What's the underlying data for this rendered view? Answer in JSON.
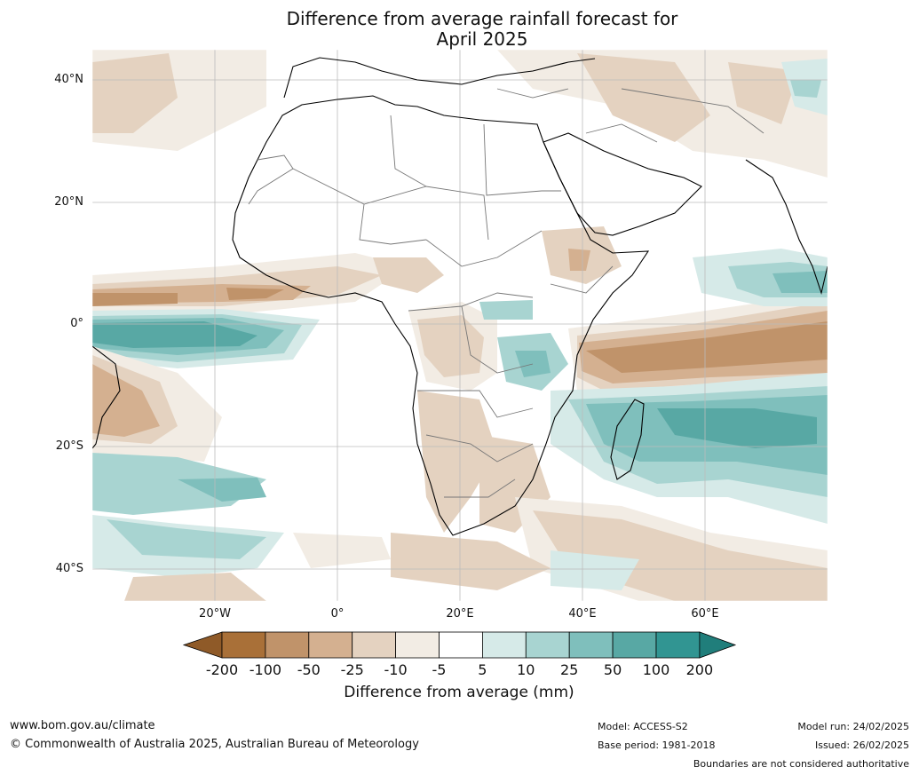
{
  "title_line1": "Difference from average rainfall forecast for",
  "title_line2": "April 2025",
  "lat_labels": [
    "40°N",
    "20°N",
    "0°",
    "20°S",
    "40°S"
  ],
  "lon_labels": [
    "20°W",
    "0°",
    "20°E",
    "40°E",
    "60°E"
  ],
  "colorbar": {
    "ticks": [
      "-200",
      "-100",
      "-50",
      "-25",
      "-10",
      "-5",
      "5",
      "10",
      "25",
      "50",
      "100",
      "200"
    ],
    "colors": [
      "#a97038",
      "#c0936a",
      "#d4b090",
      "#e4d2c0",
      "#f2ece4",
      "#ffffff",
      "#d6eae8",
      "#a8d4d1",
      "#7fbfbc",
      "#58a8a4",
      "#319592"
    ],
    "under_color": "#8f5a28",
    "over_color": "#207e7b",
    "title": "Difference from average (mm)"
  },
  "footer": {
    "url": "www.bom.gov.au/climate",
    "copyright": "© Commonwealth of Australia 2025, Australian Bureau of Meteorology",
    "model": "Model: ACCESS-S2",
    "base_period": "Base period: 1981-2018",
    "model_run": "Model run: 24/02/2025",
    "issued": "Issued: 26/02/2025",
    "disclaimer": "Boundaries are not considered authoritative"
  }
}
